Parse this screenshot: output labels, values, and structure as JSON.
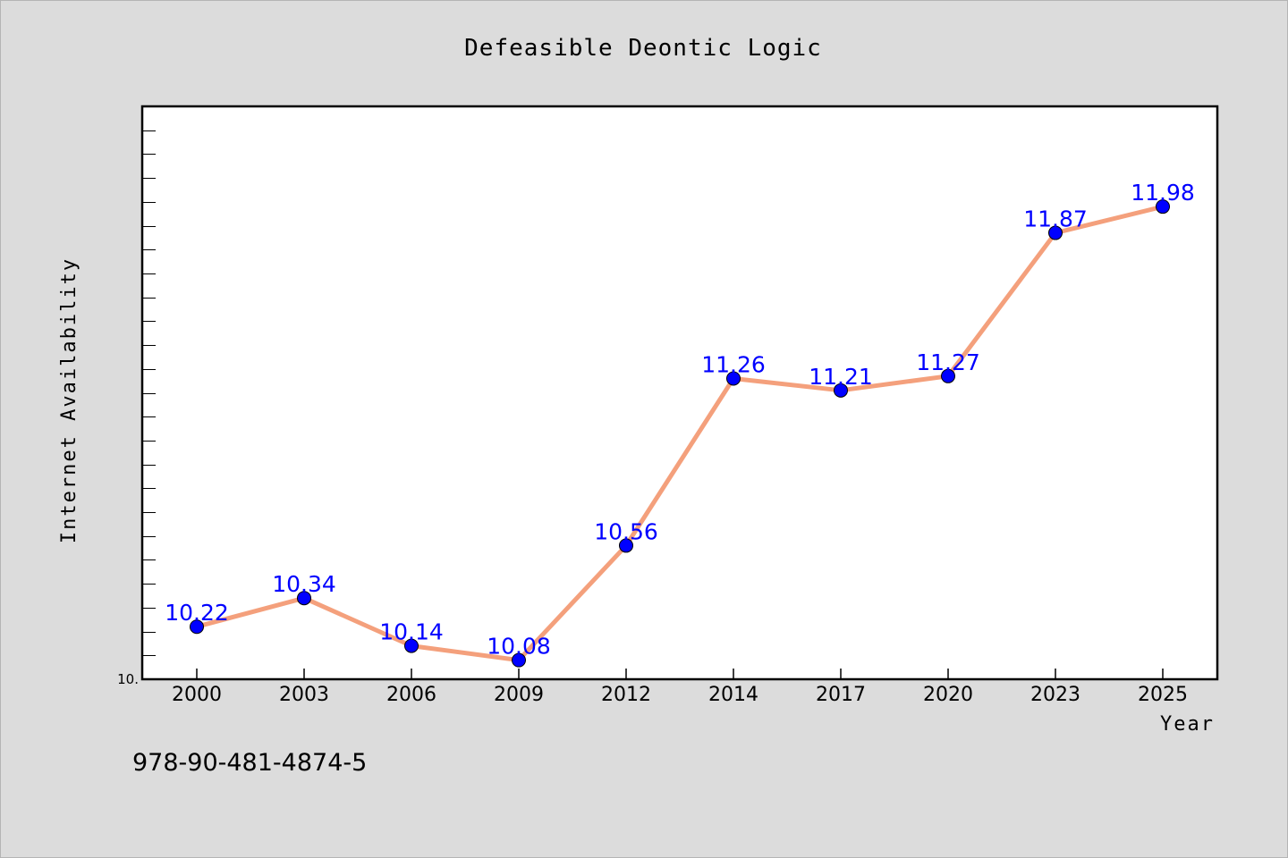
{
  "chart_data": {
    "type": "line",
    "title": "Defeasible Deontic Logic",
    "xlabel": "Year",
    "ylabel": "Internet Availability",
    "categories": [
      "2000",
      "2003",
      "2006",
      "2009",
      "2012",
      "2014",
      "2017",
      "2020",
      "2023",
      "2025"
    ],
    "series": [
      {
        "values": [
          10.22,
          10.34,
          10.14,
          10.08,
          10.56,
          11.26,
          11.21,
          11.27,
          11.87,
          11.98
        ]
      }
    ],
    "data_labels": [
      "10.22",
      "10.34",
      "10.14",
      "10.08",
      "10.56",
      "11.26",
      "11.21",
      "11.27",
      "11.87",
      "11.98"
    ],
    "ylim": [
      10.0,
      12.4
    ],
    "y_tick_labels": [
      {
        "value": 10.0,
        "label": "10."
      }
    ],
    "grid": false,
    "colors": {
      "line": "#f4a07c",
      "marker": "#0000ff",
      "data_label": "#0000ff",
      "background": "#dcdcdc",
      "plot_background": "#ffffff"
    }
  },
  "footer_text": "978-90-481-4874-5"
}
